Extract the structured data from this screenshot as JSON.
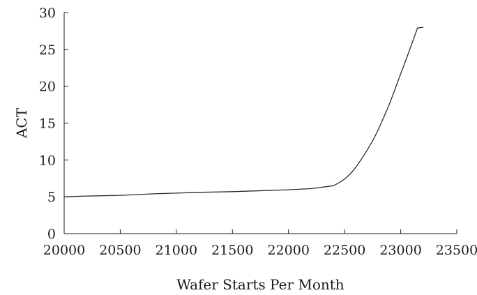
{
  "chart_data": {
    "type": "line",
    "title": "",
    "xlabel": "Wafer Starts Per Month",
    "ylabel": "ACT",
    "xlim": [
      20000,
      23500
    ],
    "ylim": [
      0,
      30
    ],
    "x_ticks": [
      20000,
      20500,
      21000,
      21500,
      22000,
      22500,
      23000,
      23500
    ],
    "y_ticks": [
      0,
      5,
      10,
      15,
      20,
      25,
      30
    ],
    "grid": false,
    "legend": "none",
    "series": [
      {
        "color": "#2b2b2b",
        "x": [
          20000,
          20200,
          20500,
          20800,
          21000,
          21200,
          21500,
          21800,
          22000,
          22200,
          22400,
          22450,
          22500,
          22550,
          22600,
          22650,
          22700,
          22750,
          22800,
          22850,
          22900,
          22950,
          23000,
          23050,
          23100,
          23150,
          23200
        ],
        "y": [
          5.0,
          5.1,
          5.2,
          5.4,
          5.5,
          5.6,
          5.7,
          5.85,
          5.95,
          6.1,
          6.5,
          6.9,
          7.4,
          8.1,
          9.0,
          10.1,
          11.3,
          12.6,
          14.1,
          15.8,
          17.6,
          19.6,
          21.7,
          23.7,
          25.8,
          27.9,
          28.0
        ]
      }
    ]
  }
}
